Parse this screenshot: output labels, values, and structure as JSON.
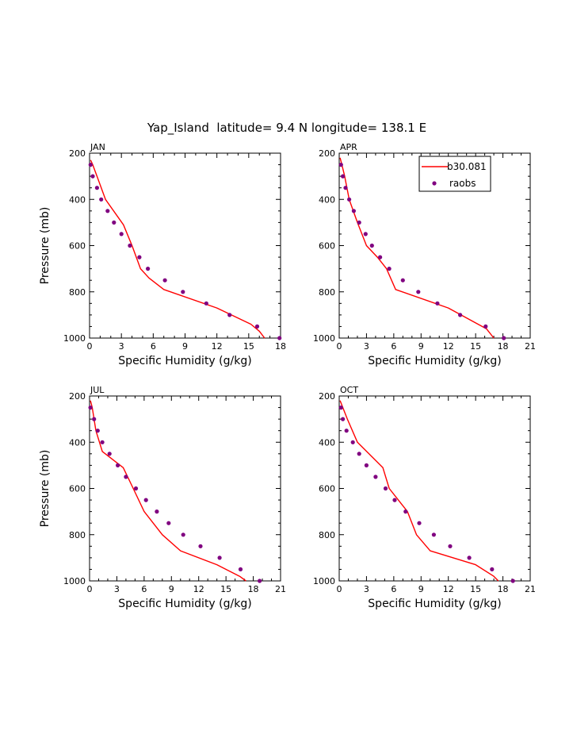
{
  "figure": {
    "title": "Yap_Island  latitude= 9.4 N longitude= 138.1 E"
  },
  "legend": {
    "model_label": "b30.081",
    "obs_label": "raobs",
    "model_color": "#ff0000",
    "obs_color": "#800080"
  },
  "chart_data": [
    {
      "type": "line",
      "panel": "JAN",
      "title": "JAN",
      "xlabel": "Specific Humidity (g/kg)",
      "ylabel": "Pressure (mb)",
      "xlim": [
        0,
        18
      ],
      "ylim": [
        200,
        1000
      ],
      "y_reversed": true,
      "xticks": [
        0,
        3,
        6,
        9,
        12,
        15,
        18
      ],
      "yticks": [
        200,
        400,
        600,
        800,
        1000
      ],
      "legend": false,
      "series": [
        {
          "name": "b30.081",
          "kind": "line",
          "x": [
            0.1,
            0.3,
            0.7,
            1.5,
            3.2,
            4.0,
            4.8,
            5.6,
            7.0,
            12.0,
            15.2,
            16.0,
            16.5
          ],
          "y": [
            230,
            250,
            300,
            400,
            510,
            600,
            700,
            740,
            790,
            870,
            940,
            970,
            1000
          ]
        },
        {
          "name": "raobs",
          "kind": "scatter",
          "x": [
            0.1,
            0.3,
            0.7,
            1.1,
            1.7,
            2.3,
            3.0,
            3.8,
            4.7,
            5.5,
            7.1,
            8.8,
            11.0,
            13.2,
            15.8,
            17.9
          ],
          "y": [
            250,
            300,
            350,
            400,
            450,
            500,
            550,
            600,
            650,
            700,
            750,
            800,
            850,
            900,
            950,
            1000
          ]
        }
      ]
    },
    {
      "type": "line",
      "panel": "APR",
      "title": "APR",
      "xlabel": "Specific Humidity (g/kg)",
      "ylabel": "",
      "xlim": [
        0,
        21
      ],
      "ylim": [
        200,
        1000
      ],
      "y_reversed": true,
      "xticks": [
        0,
        3,
        6,
        9,
        12,
        15,
        18,
        21
      ],
      "yticks": [
        200,
        400,
        600,
        800,
        1000
      ],
      "legend": true,
      "legend_position": "top-right",
      "series": [
        {
          "name": "b30.081",
          "kind": "line",
          "x": [
            0.1,
            0.3,
            0.6,
            1.1,
            2.0,
            3.0,
            4.2,
            5.2,
            6.2,
            12.0,
            16.2,
            17.0
          ],
          "y": [
            220,
            250,
            300,
            400,
            500,
            600,
            650,
            700,
            790,
            870,
            960,
            1000
          ]
        },
        {
          "name": "raobs",
          "kind": "scatter",
          "x": [
            0.2,
            0.4,
            0.7,
            1.1,
            1.6,
            2.2,
            2.9,
            3.6,
            4.5,
            5.5,
            7.0,
            8.7,
            10.8,
            13.3,
            16.1,
            18.1
          ],
          "y": [
            250,
            300,
            350,
            400,
            450,
            500,
            550,
            600,
            650,
            700,
            750,
            800,
            850,
            900,
            950,
            1000
          ]
        }
      ]
    },
    {
      "type": "line",
      "panel": "JUL",
      "title": "JUL",
      "xlabel": "Specific Humidity (g/kg)",
      "ylabel": "Pressure (mb)",
      "xlim": [
        0,
        21
      ],
      "ylim": [
        200,
        1000
      ],
      "y_reversed": true,
      "xticks": [
        0,
        3,
        6,
        9,
        12,
        15,
        18,
        21
      ],
      "yticks": [
        200,
        400,
        600,
        800,
        1000
      ],
      "legend": false,
      "series": [
        {
          "name": "b30.081",
          "kind": "line",
          "x": [
            0.1,
            0.3,
            0.7,
            1.4,
            3.7,
            4.8,
            6.0,
            8.0,
            10.0,
            14.0,
            16.5,
            17.2
          ],
          "y": [
            220,
            250,
            350,
            440,
            510,
            600,
            700,
            800,
            870,
            930,
            980,
            1000
          ]
        },
        {
          "name": "raobs",
          "kind": "scatter",
          "x": [
            0.1,
            0.5,
            0.9,
            1.4,
            2.2,
            3.1,
            4.0,
            5.1,
            6.2,
            7.4,
            8.7,
            10.3,
            12.2,
            14.3,
            16.6,
            18.7
          ],
          "y": [
            250,
            300,
            350,
            400,
            450,
            500,
            550,
            600,
            650,
            700,
            750,
            800,
            850,
            900,
            950,
            1000
          ]
        }
      ]
    },
    {
      "type": "line",
      "panel": "OCT",
      "title": "OCT",
      "xlabel": "Specific Humidity (g/kg)",
      "ylabel": "",
      "xlim": [
        0,
        21
      ],
      "ylim": [
        200,
        1000
      ],
      "y_reversed": true,
      "xticks": [
        0,
        3,
        6,
        9,
        12,
        15,
        18,
        21
      ],
      "yticks": [
        200,
        400,
        600,
        800,
        1000
      ],
      "legend": false,
      "series": [
        {
          "name": "b30.081",
          "kind": "line",
          "x": [
            0.1,
            0.4,
            0.9,
            2.0,
            4.8,
            5.5,
            6.5,
            7.5,
            8.5,
            10.0,
            15.0,
            17.0,
            17.5
          ],
          "y": [
            220,
            250,
            300,
            400,
            510,
            600,
            650,
            700,
            800,
            870,
            930,
            980,
            1000
          ]
        },
        {
          "name": "raobs",
          "kind": "scatter",
          "x": [
            0.2,
            0.4,
            0.8,
            1.5,
            2.2,
            3.0,
            4.0,
            5.1,
            6.1,
            7.3,
            8.8,
            10.4,
            12.2,
            14.3,
            16.8,
            19.1
          ],
          "y": [
            250,
            300,
            350,
            400,
            450,
            500,
            550,
            600,
            650,
            700,
            750,
            800,
            850,
            900,
            950,
            1000
          ]
        }
      ]
    }
  ]
}
